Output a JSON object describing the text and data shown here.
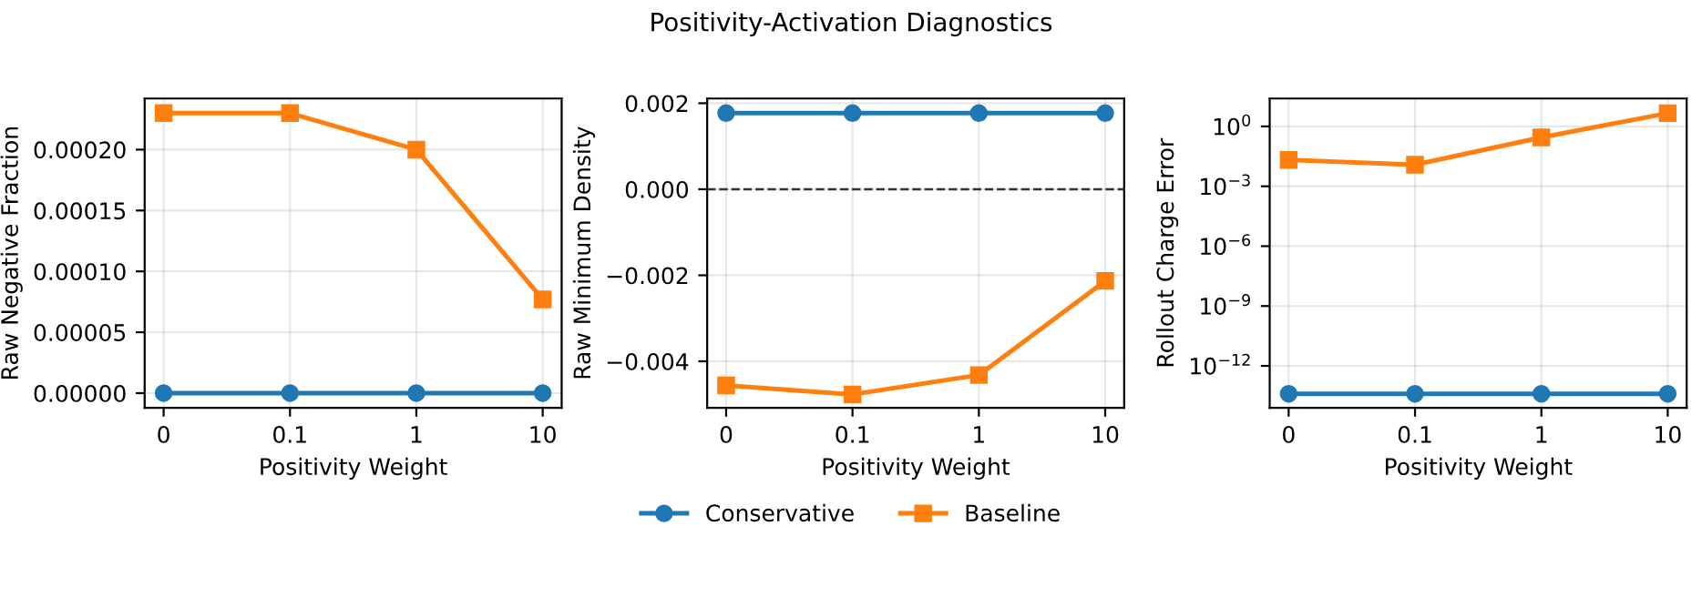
{
  "chart_data": [
    {
      "type": "line",
      "categories": [
        "0",
        "0.1",
        "1",
        "10"
      ],
      "xlabel": "Positivity Weight",
      "ylabel": "Raw Negative Fraction",
      "ylim": [
        -1.2e-05,
        0.000242
      ],
      "yticks": [
        {
          "value": 0,
          "label": "0.00000"
        },
        {
          "value": 5e-05,
          "label": "0.00005"
        },
        {
          "value": 0.0001,
          "label": "0.00010"
        },
        {
          "value": 0.00015,
          "label": "0.00015"
        },
        {
          "value": 0.0002,
          "label": "0.00020"
        }
      ],
      "grid": true,
      "legend": "bottom",
      "series": [
        {
          "name": "Conservative",
          "color": "#1f77b4",
          "marker": "circle",
          "values": [
            0,
            0,
            0,
            0
          ]
        },
        {
          "name": "Baseline",
          "color": "#ff7f0e",
          "marker": "square",
          "values": [
            0.00023,
            0.00023,
            0.0002,
            7.7e-05
          ]
        }
      ]
    },
    {
      "type": "line",
      "title": "Positivity-Activation Diagnostics",
      "categories": [
        "0",
        "0.1",
        "1",
        "10"
      ],
      "xlabel": "Positivity Weight",
      "ylabel": "Raw Minimum Density",
      "ylim": [
        -0.00508,
        0.00211
      ],
      "yticks": [
        {
          "value": -0.004,
          "label": "−0.004"
        },
        {
          "value": -0.002,
          "label": "−0.002"
        },
        {
          "value": 0,
          "label": "0.000"
        },
        {
          "value": 0.002,
          "label": "0.002"
        }
      ],
      "grid": true,
      "ref_lines": [
        {
          "axis": "y",
          "value": 0,
          "color": "#333333",
          "line_style": "dashed"
        }
      ],
      "series": [
        {
          "color": "#1f77b4",
          "marker": "circle",
          "values": [
            0.00177,
            0.00177,
            0.00177,
            0.00177
          ]
        },
        {
          "color": "#ff7f0e",
          "marker": "square",
          "values": [
            -0.00456,
            -0.00477,
            -0.00432,
            -0.00213
          ]
        }
      ]
    },
    {
      "type": "line",
      "categories": [
        "0",
        "0.1",
        "1",
        "10"
      ],
      "xlabel": "Positivity Weight",
      "ylabel": "Rollout Charge Error",
      "log": true,
      "ylim": [
        8e-15,
        25
      ],
      "yticks": [
        {
          "value": 1e-12,
          "label": "10$^{−12}$"
        },
        {
          "value": 1e-09,
          "label": "10$^{−9}$"
        },
        {
          "value": 1e-06,
          "label": "10$^{−6}$"
        },
        {
          "value": 0.001,
          "label": "10$^{−3}$"
        },
        {
          "value": 1,
          "label": "10$^{0}$"
        }
      ],
      "grid": true,
      "series": [
        {
          "color": "#1f77b4",
          "marker": "circle",
          "values": [
            4e-14,
            4e-14,
            4e-14,
            4e-14
          ]
        },
        {
          "color": "#ff7f0e",
          "marker": "square",
          "values": [
            0.021,
            0.012,
            0.28,
            4.6
          ]
        }
      ]
    }
  ]
}
